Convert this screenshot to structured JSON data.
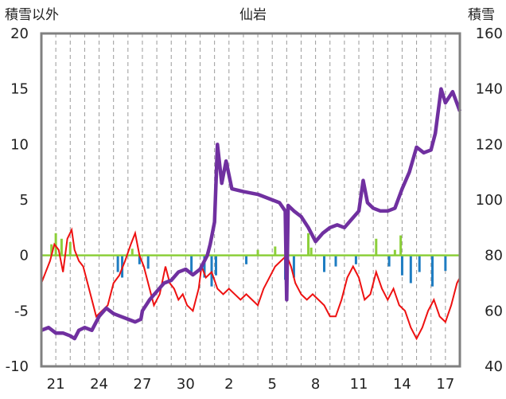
{
  "chart_data": {
    "type": "line",
    "title": "仙岩",
    "left_axis_label": "積雪以外",
    "right_axis_label": "積雪",
    "left_ylim": [
      -10,
      20
    ],
    "right_ylim": [
      40,
      160
    ],
    "left_ticks": [
      "20",
      "15",
      "10",
      "5",
      "0",
      "-5",
      "-10"
    ],
    "right_ticks": [
      "160",
      "140",
      "120",
      "100",
      "80",
      "60",
      "40"
    ],
    "x_tick_labels": [
      "21",
      "24",
      "27",
      "30",
      "2",
      "5",
      "8",
      "11",
      "14",
      "17"
    ],
    "x_range_days": [
      0,
      29
    ],
    "x_label_days": [
      1,
      4,
      7,
      10,
      13,
      16,
      19,
      22,
      25,
      28
    ],
    "grid": "vertical-dashed-daily",
    "colors": {
      "temperature": "#ee1111",
      "snow_depth": "#7030a0",
      "precipitation": "#1f7dc2",
      "sunshine": "#8ccf3a",
      "zero_line": "#8ccf3a",
      "frame": "#808080"
    },
    "series": [
      {
        "key": "temperature",
        "axis": "left",
        "style": "line",
        "points": [
          [
            0,
            -2.5
          ],
          [
            0.3,
            -1.5
          ],
          [
            0.6,
            -0.5
          ],
          [
            0.9,
            1
          ],
          [
            1.2,
            0.5
          ],
          [
            1.5,
            -1.5
          ],
          [
            1.8,
            1.5
          ],
          [
            2.1,
            2.3
          ],
          [
            2.3,
            0.5
          ],
          [
            2.6,
            -0.5
          ],
          [
            2.9,
            -1
          ],
          [
            3.2,
            -2.5
          ],
          [
            3.5,
            -4
          ],
          [
            3.8,
            -5.5
          ],
          [
            4.2,
            -5
          ],
          [
            4.6,
            -4.5
          ],
          [
            5,
            -2.5
          ],
          [
            5.4,
            -1.8
          ],
          [
            5.8,
            -0.5
          ],
          [
            6.2,
            1
          ],
          [
            6.5,
            2
          ],
          [
            6.8,
            0
          ],
          [
            7.1,
            -1
          ],
          [
            7.5,
            -3
          ],
          [
            7.8,
            -4.5
          ],
          [
            8.2,
            -3.5
          ],
          [
            8.6,
            -1
          ],
          [
            8.9,
            -2.5
          ],
          [
            9.2,
            -3
          ],
          [
            9.5,
            -4
          ],
          [
            9.8,
            -3.5
          ],
          [
            10.1,
            -4.5
          ],
          [
            10.5,
            -5
          ],
          [
            10.9,
            -3
          ],
          [
            11.1,
            -1
          ],
          [
            11.4,
            -2
          ],
          [
            11.8,
            -1.5
          ],
          [
            12.2,
            -3
          ],
          [
            12.6,
            -3.5
          ],
          [
            13,
            -3
          ],
          [
            13.4,
            -3.5
          ],
          [
            13.8,
            -4
          ],
          [
            14.2,
            -3.5
          ],
          [
            14.6,
            -4
          ],
          [
            15,
            -4.5
          ],
          [
            15.4,
            -3
          ],
          [
            15.8,
            -2
          ],
          [
            16.2,
            -1
          ],
          [
            16.6,
            -0.5
          ],
          [
            17,
            0
          ],
          [
            17.3,
            -1
          ],
          [
            17.6,
            -2.5
          ],
          [
            18,
            -3.5
          ],
          [
            18.4,
            -4
          ],
          [
            18.8,
            -3.5
          ],
          [
            19.2,
            -4
          ],
          [
            19.6,
            -4.5
          ],
          [
            20,
            -5.5
          ],
          [
            20.4,
            -5.5
          ],
          [
            20.8,
            -4
          ],
          [
            21.2,
            -2
          ],
          [
            21.6,
            -1
          ],
          [
            22,
            -2
          ],
          [
            22.4,
            -4
          ],
          [
            22.8,
            -3.5
          ],
          [
            23.2,
            -1.5
          ],
          [
            23.6,
            -3
          ],
          [
            24,
            -4
          ],
          [
            24.4,
            -3
          ],
          [
            24.8,
            -4.5
          ],
          [
            25.2,
            -5
          ],
          [
            25.6,
            -6.5
          ],
          [
            26,
            -7.5
          ],
          [
            26.4,
            -6.5
          ],
          [
            26.8,
            -5
          ],
          [
            27.2,
            -4
          ],
          [
            27.6,
            -5.5
          ],
          [
            28,
            -6
          ],
          [
            28.4,
            -4.5
          ],
          [
            28.8,
            -2.5
          ],
          [
            29,
            -2
          ]
        ]
      },
      {
        "key": "snow_depth",
        "axis": "right",
        "style": "thick-line",
        "points": [
          [
            0,
            53
          ],
          [
            0.5,
            54
          ],
          [
            1,
            52
          ],
          [
            1.5,
            52
          ],
          [
            2,
            51
          ],
          [
            2.3,
            50
          ],
          [
            2.6,
            53
          ],
          [
            3,
            54
          ],
          [
            3.5,
            53
          ],
          [
            4,
            58
          ],
          [
            4.5,
            61
          ],
          [
            5,
            59
          ],
          [
            5.5,
            58
          ],
          [
            6,
            57
          ],
          [
            6.5,
            56
          ],
          [
            6.9,
            57
          ],
          [
            7,
            60
          ],
          [
            7.5,
            64
          ],
          [
            8,
            67
          ],
          [
            8.5,
            70
          ],
          [
            9,
            71
          ],
          [
            9.5,
            74
          ],
          [
            10,
            75
          ],
          [
            10.5,
            73
          ],
          [
            11,
            75
          ],
          [
            11.5,
            80
          ],
          [
            11.7,
            84
          ],
          [
            12,
            92
          ],
          [
            12.2,
            120
          ],
          [
            12.5,
            106
          ],
          [
            12.8,
            114
          ],
          [
            13.2,
            104
          ],
          [
            14,
            103
          ],
          [
            15,
            102
          ],
          [
            16,
            100
          ],
          [
            16.5,
            99
          ],
          [
            16.9,
            96
          ],
          [
            17,
            64
          ],
          [
            17.1,
            98
          ],
          [
            17.5,
            96
          ],
          [
            18,
            94
          ],
          [
            18.5,
            90
          ],
          [
            19,
            85
          ],
          [
            19.5,
            88
          ],
          [
            20,
            90
          ],
          [
            20.5,
            91
          ],
          [
            21,
            90
          ],
          [
            21.5,
            93
          ],
          [
            22,
            96
          ],
          [
            22.3,
            107
          ],
          [
            22.6,
            99
          ],
          [
            23,
            97
          ],
          [
            23.5,
            96
          ],
          [
            24,
            96
          ],
          [
            24.5,
            97
          ],
          [
            25,
            104
          ],
          [
            25.5,
            110
          ],
          [
            26,
            119
          ],
          [
            26.5,
            117
          ],
          [
            27,
            118
          ],
          [
            27.3,
            124
          ],
          [
            27.7,
            140
          ],
          [
            28,
            135
          ],
          [
            28.5,
            139
          ],
          [
            29,
            132
          ]
        ]
      },
      {
        "key": "precipitation",
        "axis": "left",
        "style": "bars",
        "points": [
          [
            5.3,
            -1.5
          ],
          [
            5.6,
            -2
          ],
          [
            6.8,
            -0.8
          ],
          [
            7.4,
            -1.2
          ],
          [
            10.4,
            -1.5
          ],
          [
            11.3,
            -2
          ],
          [
            11.8,
            -2.8
          ],
          [
            12.1,
            -1.8
          ],
          [
            14.2,
            -0.8
          ],
          [
            16.9,
            -2.2
          ],
          [
            17.5,
            -2
          ],
          [
            19.6,
            -1.5
          ],
          [
            20.4,
            -1
          ],
          [
            21.8,
            -0.8
          ],
          [
            24.1,
            -1
          ],
          [
            25,
            -1.8
          ],
          [
            25.6,
            -2.5
          ],
          [
            26.2,
            -1.5
          ],
          [
            27.1,
            -2.8
          ],
          [
            28,
            -1.4
          ]
        ]
      },
      {
        "key": "sunshine",
        "axis": "left",
        "style": "bars",
        "points": [
          [
            0.7,
            1
          ],
          [
            1,
            2
          ],
          [
            1.4,
            1.5
          ],
          [
            2,
            1.2
          ],
          [
            6.3,
            0.6
          ],
          [
            15,
            0.5
          ],
          [
            16.2,
            0.8
          ],
          [
            18.5,
            2
          ],
          [
            18.7,
            0.7
          ],
          [
            23.2,
            1.5
          ],
          [
            24.5,
            0.5
          ],
          [
            24.9,
            1.8
          ]
        ]
      }
    ]
  }
}
